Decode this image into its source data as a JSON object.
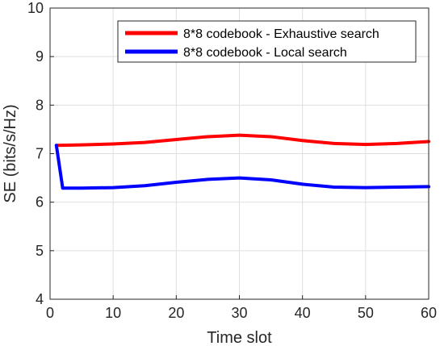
{
  "chart_data": {
    "type": "line",
    "xlabel": "Time slot",
    "ylabel": "SE (bits/s/Hz)",
    "xlim": [
      0,
      60
    ],
    "ylim": [
      4,
      10
    ],
    "xticks": [
      0,
      10,
      20,
      30,
      40,
      50,
      60
    ],
    "yticks": [
      4,
      5,
      6,
      7,
      8,
      9,
      10
    ],
    "grid": true,
    "legend_position": "top-right",
    "series": [
      {
        "name": "8*8 codebook - Exhaustive search",
        "color": "#ff0000",
        "x": [
          1,
          5,
          10,
          15,
          20,
          25,
          30,
          35,
          40,
          45,
          50,
          55,
          60
        ],
        "y": [
          7.17,
          7.18,
          7.2,
          7.23,
          7.29,
          7.35,
          7.38,
          7.35,
          7.27,
          7.21,
          7.19,
          7.21,
          7.25
        ]
      },
      {
        "name": "8*8 codebook - Local search",
        "color": "#0000ff",
        "x": [
          1,
          2,
          5,
          10,
          15,
          20,
          25,
          30,
          35,
          40,
          45,
          50,
          55,
          60
        ],
        "y": [
          7.17,
          6.29,
          6.29,
          6.3,
          6.34,
          6.41,
          6.47,
          6.5,
          6.46,
          6.37,
          6.31,
          6.3,
          6.31,
          6.32
        ]
      }
    ]
  }
}
